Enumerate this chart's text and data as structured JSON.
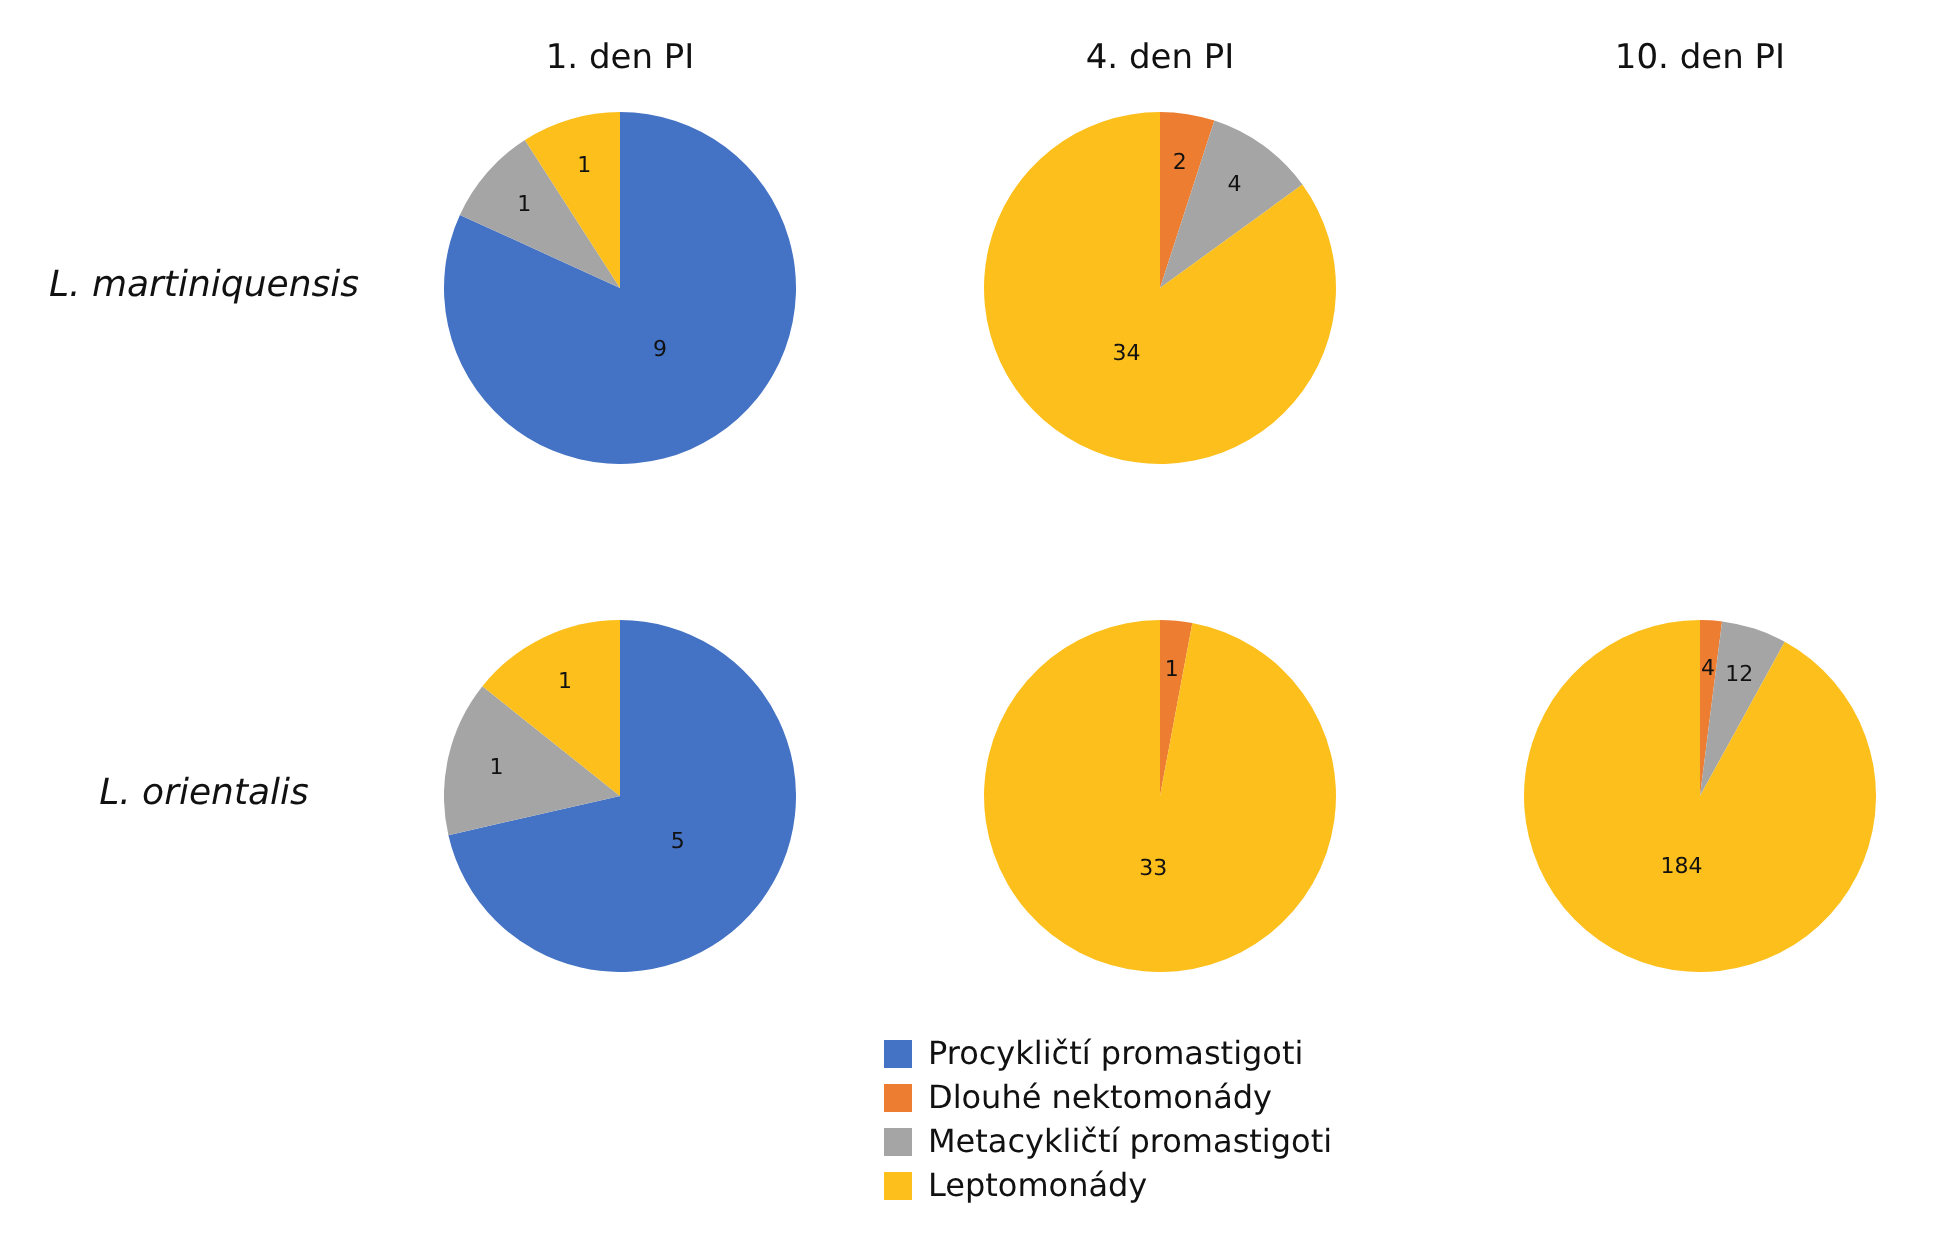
{
  "chart_data": [
    {
      "type": "pie",
      "title": "1. den PI",
      "ylabel": "L. martiniquensis",
      "values": [
        9,
        0,
        1,
        1
      ],
      "colors": [
        "#4472c4",
        "#ed7d31",
        "#a5a5a5",
        "#fdbf1c"
      ],
      "data_labels": true
    },
    {
      "type": "pie",
      "title": "4. den PI",
      "values": [
        0,
        2,
        4,
        34
      ],
      "colors": [
        "#4472c4",
        "#ed7d31",
        "#a5a5a5",
        "#fdbf1c"
      ],
      "data_labels": true
    },
    {
      "type": "other",
      "title": "10. den PI"
    },
    {
      "type": "pie",
      "ylabel": "L. orientalis",
      "values": [
        5,
        0,
        1,
        1
      ],
      "colors": [
        "#4472c4",
        "#ed7d31",
        "#a5a5a5",
        "#fdbf1c"
      ],
      "data_labels": true
    },
    {
      "type": "pie",
      "categories": [
        "Procykličtí promastigoti",
        "Dlouhé nektomonády",
        "Metacykličtí promastigoti",
        "Leptomonády"
      ],
      "values": [
        0,
        1,
        0,
        33
      ],
      "colors": [
        "#4472c4",
        "#ed7d31",
        "#a5a5a5",
        "#fdbf1c"
      ],
      "data_labels": true,
      "legend": "bottom"
    },
    {
      "type": "pie",
      "values": [
        0,
        4,
        12,
        184
      ],
      "colors": [
        "#4472c4",
        "#ed7d31",
        "#a5a5a5",
        "#fdbf1c"
      ],
      "data_labels": true
    }
  ]
}
